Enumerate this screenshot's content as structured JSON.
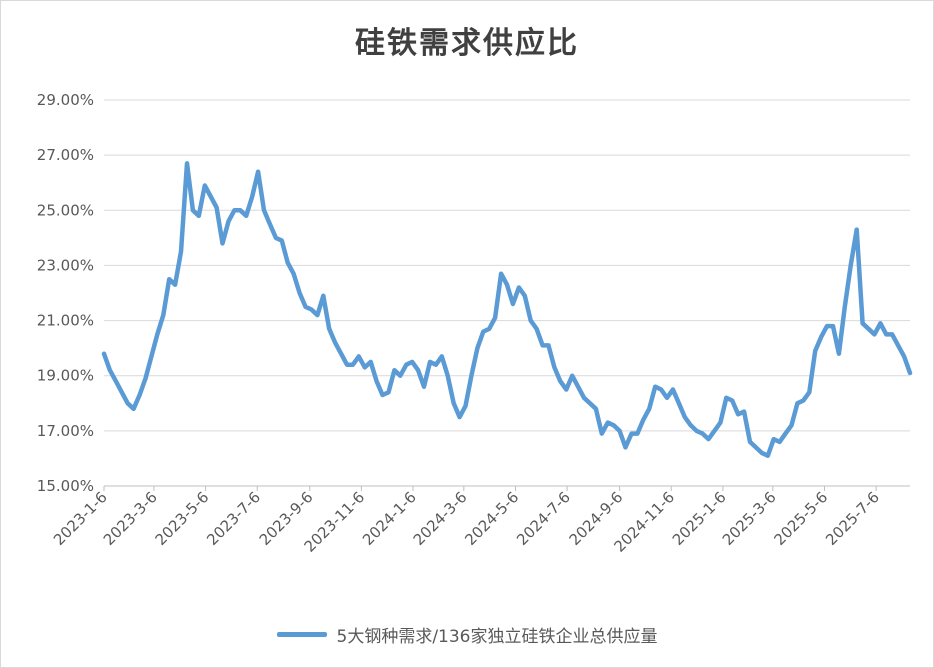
{
  "chart_data": {
    "type": "line",
    "title": "硅铁需求供应比",
    "ylim": [
      15,
      29
    ],
    "y_ticks": [
      "15.00%",
      "17.00%",
      "19.00%",
      "21.00%",
      "23.00%",
      "25.00%",
      "27.00%",
      "29.00%"
    ],
    "x_ticks": [
      "2023-1-6",
      "2023-3-6",
      "2023-5-6",
      "2023-7-6",
      "2023-9-6",
      "2023-11-6",
      "2024-1-6",
      "2024-3-6",
      "2024-5-6",
      "2024-7-6",
      "2024-9-6",
      "2024-11-6",
      "2025-1-6",
      "2025-3-6",
      "2025-5-6",
      "2025-7-6"
    ],
    "x_tick_dates": [
      "2023-01-06",
      "2023-03-06",
      "2023-05-06",
      "2023-07-06",
      "2023-09-06",
      "2023-11-06",
      "2024-01-06",
      "2024-03-06",
      "2024-05-06",
      "2024-07-06",
      "2024-09-06",
      "2024-11-06",
      "2025-01-06",
      "2025-03-06",
      "2025-05-06",
      "2025-07-06"
    ],
    "x_range": [
      "2023-01-06",
      "2025-08-15"
    ],
    "grid": true,
    "legend_position": "bottom",
    "series": [
      {
        "name": "5大钢种需求/136家独立硅铁企业总供应量",
        "color": "#5b9bd5",
        "points": [
          [
            "2023-01-06",
            19.8
          ],
          [
            "2023-01-13",
            19.2
          ],
          [
            "2023-01-20",
            18.8
          ],
          [
            "2023-01-27",
            18.4
          ],
          [
            "2023-02-03",
            18.0
          ],
          [
            "2023-02-10",
            17.8
          ],
          [
            "2023-02-17",
            18.3
          ],
          [
            "2023-02-24",
            18.9
          ],
          [
            "2023-03-03",
            19.7
          ],
          [
            "2023-03-10",
            20.5
          ],
          [
            "2023-03-17",
            21.2
          ],
          [
            "2023-03-24",
            22.5
          ],
          [
            "2023-03-31",
            22.3
          ],
          [
            "2023-04-07",
            23.5
          ],
          [
            "2023-04-14",
            26.7
          ],
          [
            "2023-04-21",
            25.0
          ],
          [
            "2023-04-28",
            24.8
          ],
          [
            "2023-05-05",
            25.9
          ],
          [
            "2023-05-12",
            25.5
          ],
          [
            "2023-05-19",
            25.1
          ],
          [
            "2023-05-26",
            23.8
          ],
          [
            "2023-06-02",
            24.6
          ],
          [
            "2023-06-09",
            25.0
          ],
          [
            "2023-06-16",
            25.0
          ],
          [
            "2023-06-23",
            24.8
          ],
          [
            "2023-06-30",
            25.5
          ],
          [
            "2023-07-07",
            26.4
          ],
          [
            "2023-07-14",
            25.0
          ],
          [
            "2023-07-21",
            24.5
          ],
          [
            "2023-07-28",
            24.0
          ],
          [
            "2023-08-04",
            23.9
          ],
          [
            "2023-08-11",
            23.1
          ],
          [
            "2023-08-18",
            22.7
          ],
          [
            "2023-08-25",
            22.0
          ],
          [
            "2023-09-01",
            21.5
          ],
          [
            "2023-09-08",
            21.4
          ],
          [
            "2023-09-15",
            21.2
          ],
          [
            "2023-09-22",
            21.9
          ],
          [
            "2023-09-29",
            20.7
          ],
          [
            "2023-10-06",
            20.2
          ],
          [
            "2023-10-13",
            19.8
          ],
          [
            "2023-10-20",
            19.4
          ],
          [
            "2023-10-27",
            19.4
          ],
          [
            "2023-11-03",
            19.7
          ],
          [
            "2023-11-10",
            19.3
          ],
          [
            "2023-11-17",
            19.5
          ],
          [
            "2023-11-24",
            18.8
          ],
          [
            "2023-12-01",
            18.3
          ],
          [
            "2023-12-08",
            18.4
          ],
          [
            "2023-12-15",
            19.2
          ],
          [
            "2023-12-22",
            19.0
          ],
          [
            "2023-12-29",
            19.4
          ],
          [
            "2024-01-05",
            19.5
          ],
          [
            "2024-01-12",
            19.2
          ],
          [
            "2024-01-19",
            18.6
          ],
          [
            "2024-01-26",
            19.5
          ],
          [
            "2024-02-02",
            19.4
          ],
          [
            "2024-02-09",
            19.7
          ],
          [
            "2024-02-16",
            19.0
          ],
          [
            "2024-02-23",
            18.0
          ],
          [
            "2024-03-01",
            17.5
          ],
          [
            "2024-03-08",
            17.9
          ],
          [
            "2024-03-15",
            19.0
          ],
          [
            "2024-03-22",
            20.0
          ],
          [
            "2024-03-29",
            20.6
          ],
          [
            "2024-04-05",
            20.7
          ],
          [
            "2024-04-12",
            21.1
          ],
          [
            "2024-04-19",
            22.7
          ],
          [
            "2024-04-26",
            22.3
          ],
          [
            "2024-05-03",
            21.6
          ],
          [
            "2024-05-10",
            22.2
          ],
          [
            "2024-05-17",
            21.9
          ],
          [
            "2024-05-24",
            21.0
          ],
          [
            "2024-05-31",
            20.7
          ],
          [
            "2024-06-07",
            20.1
          ],
          [
            "2024-06-14",
            20.1
          ],
          [
            "2024-06-21",
            19.3
          ],
          [
            "2024-06-28",
            18.8
          ],
          [
            "2024-07-05",
            18.5
          ],
          [
            "2024-07-12",
            19.0
          ],
          [
            "2024-07-19",
            18.6
          ],
          [
            "2024-07-26",
            18.2
          ],
          [
            "2024-08-02",
            18.0
          ],
          [
            "2024-08-09",
            17.8
          ],
          [
            "2024-08-16",
            16.9
          ],
          [
            "2024-08-23",
            17.3
          ],
          [
            "2024-08-30",
            17.2
          ],
          [
            "2024-09-06",
            17.0
          ],
          [
            "2024-09-13",
            16.4
          ],
          [
            "2024-09-20",
            16.9
          ],
          [
            "2024-09-27",
            16.9
          ],
          [
            "2024-10-04",
            17.4
          ],
          [
            "2024-10-11",
            17.8
          ],
          [
            "2024-10-18",
            18.6
          ],
          [
            "2024-10-25",
            18.5
          ],
          [
            "2024-11-01",
            18.2
          ],
          [
            "2024-11-08",
            18.5
          ],
          [
            "2024-11-15",
            18.0
          ],
          [
            "2024-11-22",
            17.5
          ],
          [
            "2024-11-29",
            17.2
          ],
          [
            "2024-12-06",
            17.0
          ],
          [
            "2024-12-13",
            16.9
          ],
          [
            "2024-12-20",
            16.7
          ],
          [
            "2024-12-27",
            17.0
          ],
          [
            "2025-01-03",
            17.3
          ],
          [
            "2025-01-10",
            18.2
          ],
          [
            "2025-01-17",
            18.1
          ],
          [
            "2025-01-24",
            17.6
          ],
          [
            "2025-01-31",
            17.7
          ],
          [
            "2025-02-07",
            16.6
          ],
          [
            "2025-02-14",
            16.4
          ],
          [
            "2025-02-21",
            16.2
          ],
          [
            "2025-02-28",
            16.1
          ],
          [
            "2025-03-07",
            16.7
          ],
          [
            "2025-03-14",
            16.6
          ],
          [
            "2025-03-21",
            16.9
          ],
          [
            "2025-03-28",
            17.2
          ],
          [
            "2025-04-04",
            18.0
          ],
          [
            "2025-04-11",
            18.1
          ],
          [
            "2025-04-18",
            18.4
          ],
          [
            "2025-04-25",
            19.9
          ],
          [
            "2025-05-02",
            20.4
          ],
          [
            "2025-05-09",
            20.8
          ],
          [
            "2025-05-16",
            20.8
          ],
          [
            "2025-05-23",
            19.8
          ],
          [
            "2025-05-30",
            21.5
          ],
          [
            "2025-06-06",
            23.0
          ],
          [
            "2025-06-13",
            24.3
          ],
          [
            "2025-06-20",
            20.9
          ],
          [
            "2025-06-27",
            20.7
          ],
          [
            "2025-07-04",
            20.5
          ],
          [
            "2025-07-11",
            20.9
          ],
          [
            "2025-07-18",
            20.5
          ],
          [
            "2025-07-25",
            20.5
          ],
          [
            "2025-08-01",
            20.1
          ],
          [
            "2025-08-08",
            19.7
          ],
          [
            "2025-08-15",
            19.1
          ]
        ]
      }
    ]
  }
}
